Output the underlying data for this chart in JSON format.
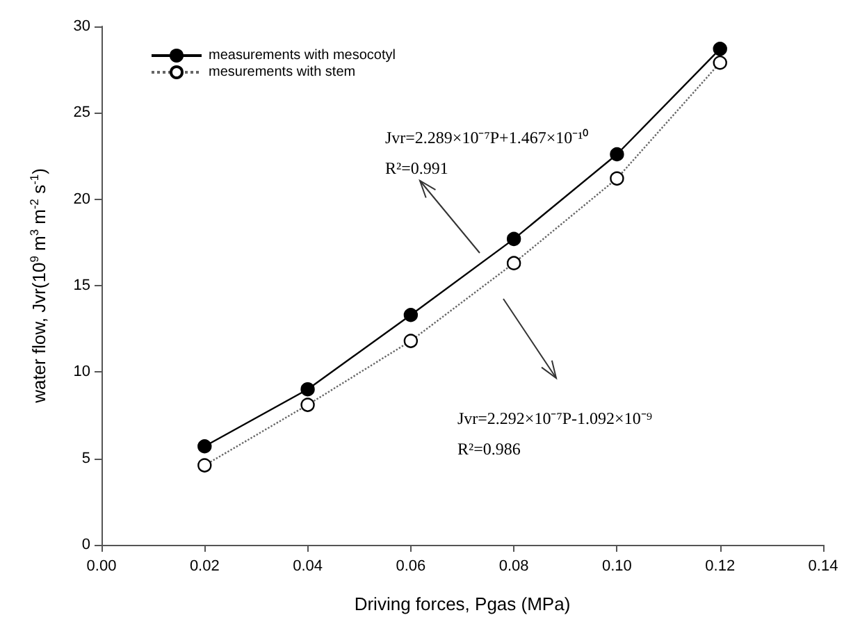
{
  "chart_data": {
    "type": "line",
    "xlabel": "Driving forces, Pgas (MPa)",
    "ylabel": "water flow, Jvr(10$^{9}$ m$^{3}$ m$^{-2}$ s$^{-1}$)",
    "x": [
      0.02,
      0.04,
      0.06,
      0.08,
      0.1,
      0.12
    ],
    "series": [
      {
        "name": "measurements with mesocotyl",
        "color": "#000000",
        "line_style": "solid",
        "values": [
          5.7,
          9.0,
          13.3,
          17.7,
          22.6,
          28.7
        ]
      },
      {
        "name": "mesurements with stem",
        "color": "#666666",
        "line_style": "dotted",
        "values": [
          4.6,
          8.1,
          11.8,
          16.3,
          21.2,
          27.9
        ]
      }
    ],
    "xlim": [
      0,
      0.14
    ],
    "xticks": [
      {
        "value": 0,
        "label": "0.00"
      },
      0.02,
      0.04,
      0.06,
      0.08,
      {
        "value": 0.1,
        "label": "0.10"
      },
      0.12,
      0.14
    ],
    "ylim": [
      0,
      30
    ],
    "yticks": [
      0,
      5,
      10,
      15,
      20,
      25,
      30
    ],
    "annotations": [
      "Jvr=2.289×10⁻⁷P+1.467×10⁻¹⁰\nR²=0.991",
      "Jvr=2.292×10⁻⁷P-1.092×10⁻⁹\nR²=0.986"
    ],
    "marker": "circle",
    "grid": false,
    "legend": "top left"
  }
}
